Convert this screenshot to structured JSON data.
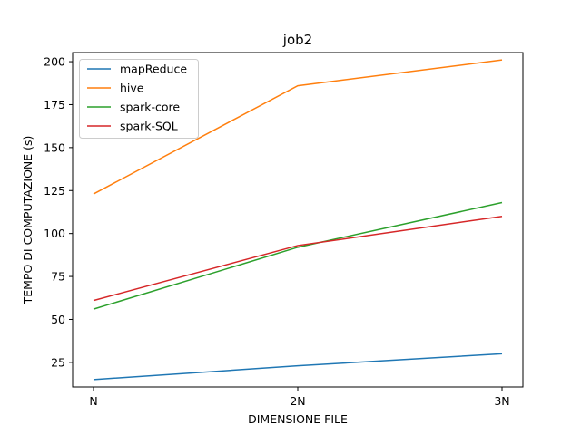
{
  "chart_data": {
    "type": "line",
    "title": "job2",
    "xlabel": "DIMENSIONE FILE",
    "ylabel": "TEMPO DI COMPUTAZIONE (s)",
    "categories": [
      "N",
      "2N",
      "3N"
    ],
    "ylim": [
      10.7,
      205.3
    ],
    "yticks": [
      25,
      50,
      75,
      100,
      125,
      150,
      175,
      200
    ],
    "grid": false,
    "legend_position": "top-left",
    "series": [
      {
        "name": "mapReduce",
        "color": "#1f77b4",
        "values": [
          15,
          23,
          30
        ]
      },
      {
        "name": "hive",
        "color": "#ff7f0e",
        "values": [
          123,
          186,
          201
        ]
      },
      {
        "name": "spark-core",
        "color": "#2ca02c",
        "values": [
          56,
          92,
          118
        ]
      },
      {
        "name": "spark-SQL",
        "color": "#d62728",
        "values": [
          61,
          93,
          110
        ]
      }
    ]
  }
}
